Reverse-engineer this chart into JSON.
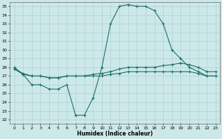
{
  "xlabel": "Humidex (Indice chaleur)",
  "ylabel": "",
  "bg_color": "#cce8e8",
  "grid_color": "#b0d0d0",
  "line_color": "#1a6e6a",
  "xlim": [
    -0.5,
    23.5
  ],
  "ylim": [
    21.5,
    35.5
  ],
  "yticks": [
    22,
    23,
    24,
    25,
    26,
    27,
    28,
    29,
    30,
    31,
    32,
    33,
    34,
    35
  ],
  "xticks": [
    0,
    1,
    2,
    3,
    4,
    5,
    6,
    7,
    8,
    9,
    10,
    11,
    12,
    13,
    14,
    15,
    16,
    17,
    18,
    19,
    20,
    21,
    22,
    23
  ],
  "series": [
    {
      "x": [
        0,
        1,
        2,
        3,
        4,
        5,
        6,
        7,
        8,
        9,
        10,
        11,
        12,
        13,
        14,
        15,
        16,
        17,
        18,
        19,
        20,
        21,
        22,
        23
      ],
      "y": [
        28.0,
        27.2,
        26.0,
        26.0,
        25.5,
        25.5,
        26.0,
        22.5,
        22.5,
        24.5,
        28.0,
        33.0,
        35.0,
        35.2,
        35.0,
        35.0,
        34.5,
        33.0,
        30.0,
        29.0,
        28.0,
        27.5,
        27.0,
        27.0
      ]
    },
    {
      "x": [
        0,
        1,
        2,
        3,
        4,
        5,
        6,
        7,
        8,
        9,
        10,
        11,
        12,
        13,
        14,
        15,
        16,
        17,
        18,
        19,
        20,
        21,
        22,
        23
      ],
      "y": [
        27.8,
        27.3,
        27.0,
        27.0,
        26.8,
        26.8,
        27.0,
        27.0,
        27.0,
        27.2,
        27.3,
        27.5,
        27.8,
        28.0,
        28.0,
        28.0,
        28.0,
        28.2,
        28.3,
        28.5,
        28.3,
        28.0,
        27.5,
        27.5
      ]
    },
    {
      "x": [
        0,
        1,
        2,
        3,
        4,
        5,
        6,
        7,
        8,
        9,
        10,
        11,
        12,
        13,
        14,
        15,
        16,
        17,
        18,
        19,
        20,
        21,
        22,
        23
      ],
      "y": [
        27.8,
        27.2,
        27.0,
        27.0,
        26.8,
        26.8,
        27.0,
        27.0,
        27.0,
        27.0,
        27.0,
        27.2,
        27.3,
        27.5,
        27.5,
        27.5,
        27.5,
        27.5,
        27.5,
        27.5,
        27.5,
        27.3,
        27.0,
        27.0
      ]
    }
  ]
}
